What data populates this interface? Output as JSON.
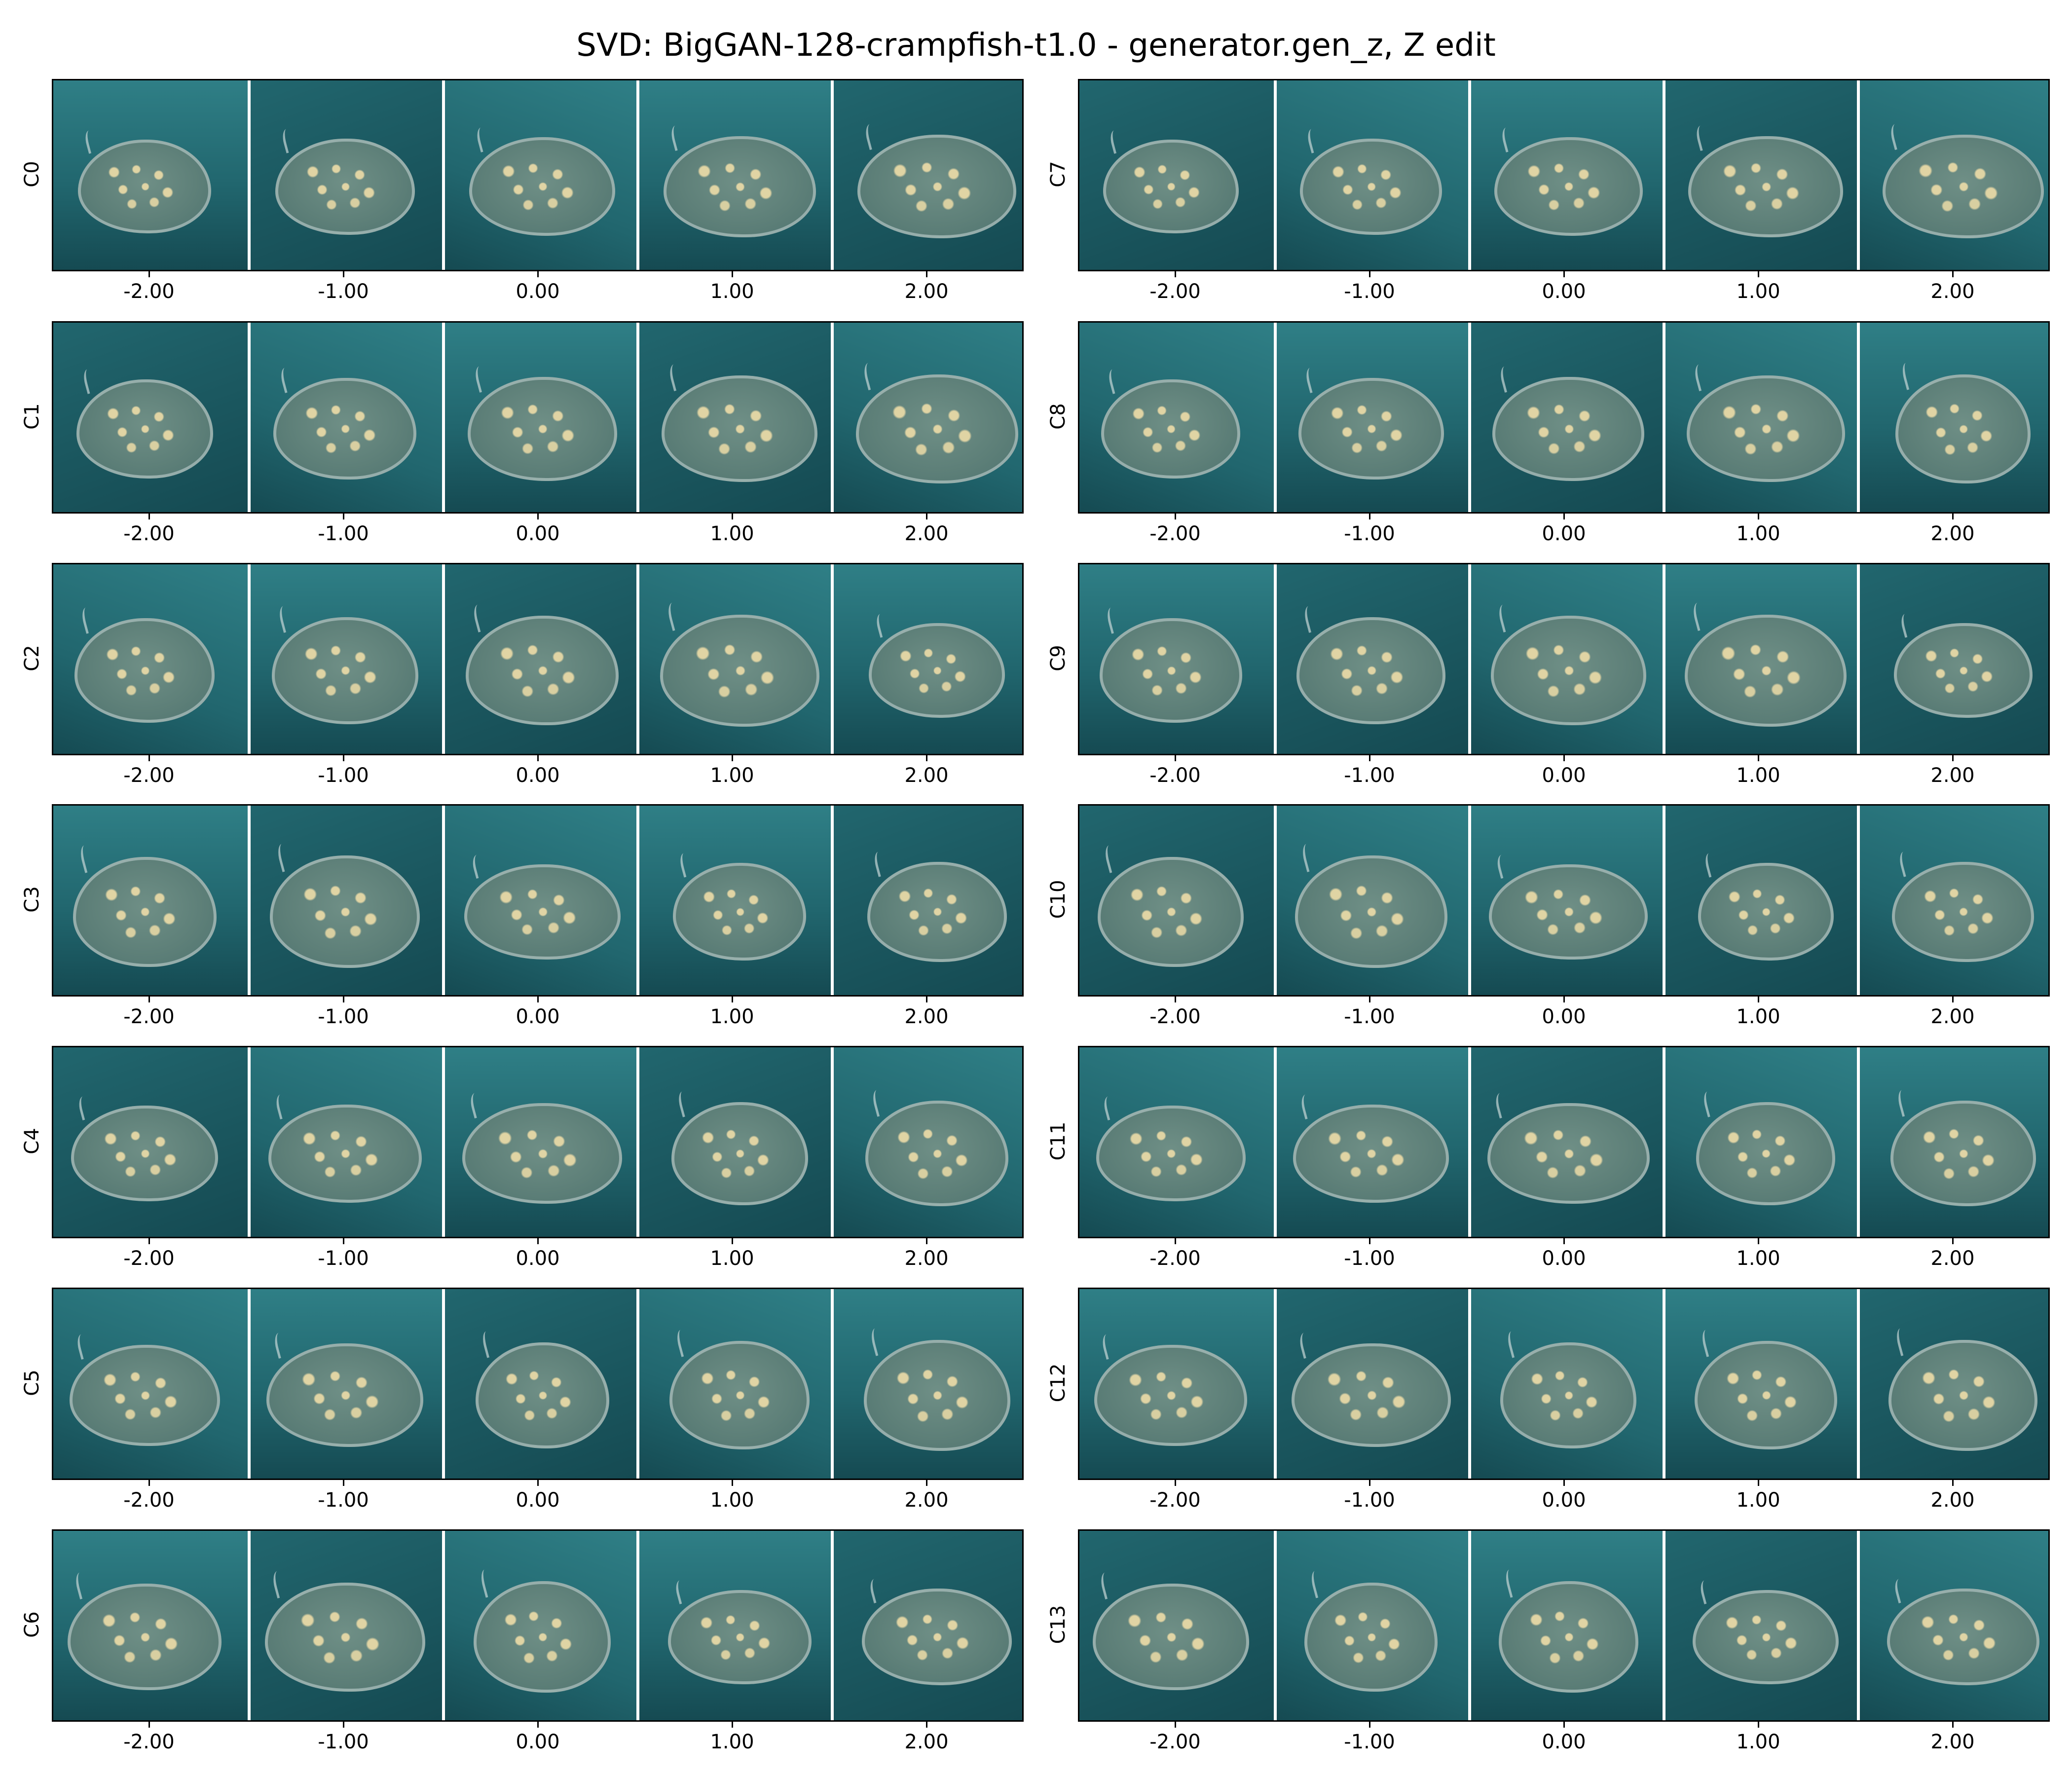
{
  "figure": {
    "title": "SVD: BigGAN-128-crampfish-t1.0 - generator.gen_z, Z edit"
  },
  "x_ticks": [
    "-2.00",
    "-1.00",
    "0.00",
    "1.00",
    "2.00"
  ],
  "columns": [
    {
      "rows": [
        "C0",
        "C1",
        "C2",
        "C3",
        "C4",
        "C5",
        "C6"
      ]
    },
    {
      "rows": [
        "C7",
        "C8",
        "C9",
        "C10",
        "C11",
        "C12",
        "C13"
      ]
    }
  ],
  "colors": {
    "water_dark": "#154a52",
    "water_mid": "#21666e",
    "water_light": "#2f7f86",
    "ray_body": "#6f8f86",
    "ray_spots": "#e8d7a6",
    "separator": "#ffffff",
    "axis": "#000000"
  }
}
